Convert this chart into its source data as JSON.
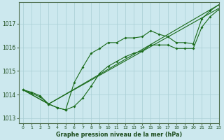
{
  "title": "Graphe pression niveau de la mer (hPa)",
  "bg_color": "#cce8ee",
  "grid_color": "#a8cdd4",
  "line_color": "#1a6b1a",
  "xlim": [
    -0.5,
    23
  ],
  "ylim": [
    1012.8,
    1017.9
  ],
  "yticks": [
    1013,
    1014,
    1015,
    1016,
    1017
  ],
  "xticks": [
    0,
    1,
    2,
    3,
    4,
    5,
    6,
    7,
    8,
    9,
    10,
    11,
    12,
    13,
    14,
    15,
    16,
    17,
    18,
    19,
    20,
    21,
    22,
    23
  ],
  "series": [
    {
      "x": [
        0,
        1,
        2,
        3,
        4,
        5,
        6,
        7,
        8,
        9,
        10,
        11,
        12,
        13,
        14,
        15,
        16,
        17,
        18,
        19,
        20,
        21,
        22,
        23
      ],
      "y": [
        1014.2,
        1014.1,
        1013.95,
        1013.6,
        1013.45,
        1013.35,
        1014.5,
        1015.15,
        1015.75,
        1015.95,
        1016.2,
        1016.2,
        1016.4,
        1016.4,
        1016.45,
        1016.7,
        1016.55,
        1016.45,
        1016.2,
        1016.2,
        1016.15,
        1017.2,
        1017.55,
        1017.8
      ]
    },
    {
      "x": [
        0,
        1,
        2,
        3,
        4,
        5,
        6,
        7,
        8,
        9,
        10,
        11,
        12,
        13,
        14,
        15,
        16,
        17,
        18,
        19,
        20,
        21,
        22,
        23
      ],
      "y": [
        1014.2,
        1014.05,
        1013.9,
        1013.6,
        1013.45,
        1013.35,
        1013.5,
        1013.85,
        1014.35,
        1014.9,
        1015.2,
        1015.4,
        1015.6,
        1015.75,
        1015.85,
        1016.1,
        1016.1,
        1016.1,
        1015.95,
        1015.95,
        1015.95,
        1016.85,
        1017.3,
        1017.6
      ]
    },
    {
      "x": [
        0,
        3,
        23
      ],
      "y": [
        1014.2,
        1013.6,
        1017.8
      ]
    },
    {
      "x": [
        0,
        3,
        23
      ],
      "y": [
        1014.2,
        1013.6,
        1017.65
      ]
    }
  ],
  "series_markers": [
    true,
    true,
    false,
    false
  ]
}
